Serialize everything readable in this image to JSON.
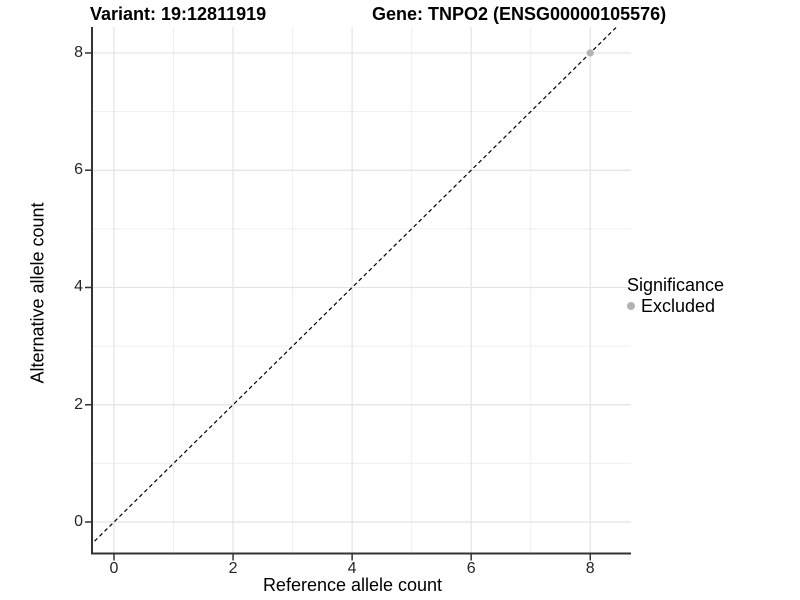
{
  "header": {
    "variant_title": "Variant: 19:12811919",
    "gene_title": "Gene: TNPO2 (ENSG00000105576)"
  },
  "chart_data": {
    "type": "scatter",
    "xlabel": "Reference allele count",
    "ylabel": "Alternative allele count",
    "x_ticks": [
      0,
      2,
      4,
      6,
      8
    ],
    "y_ticks": [
      0,
      2,
      4,
      6,
      8
    ],
    "xlim": [
      -0.4,
      8.7
    ],
    "ylim": [
      -0.55,
      8.45
    ],
    "grid": "major-and-minor",
    "plot_background": "#ffffff",
    "reference_line": {
      "kind": "identity-diagonal",
      "slope": 1,
      "intercept": 0,
      "style": "dashed",
      "color": "#000000"
    },
    "points": [
      {
        "x": 8,
        "y": 8,
        "series": "Excluded"
      }
    ],
    "legend": {
      "title": "Significance",
      "position": "right",
      "entries": [
        {
          "label": "Excluded",
          "color": "#b3b3b3",
          "marker": "circle"
        }
      ]
    },
    "colors": {
      "grid_major": "#e3e3e3",
      "grid_minor": "#efefef",
      "axis_line": "#333333",
      "tick_mark": "#333333",
      "tick_label": "#262626"
    }
  }
}
